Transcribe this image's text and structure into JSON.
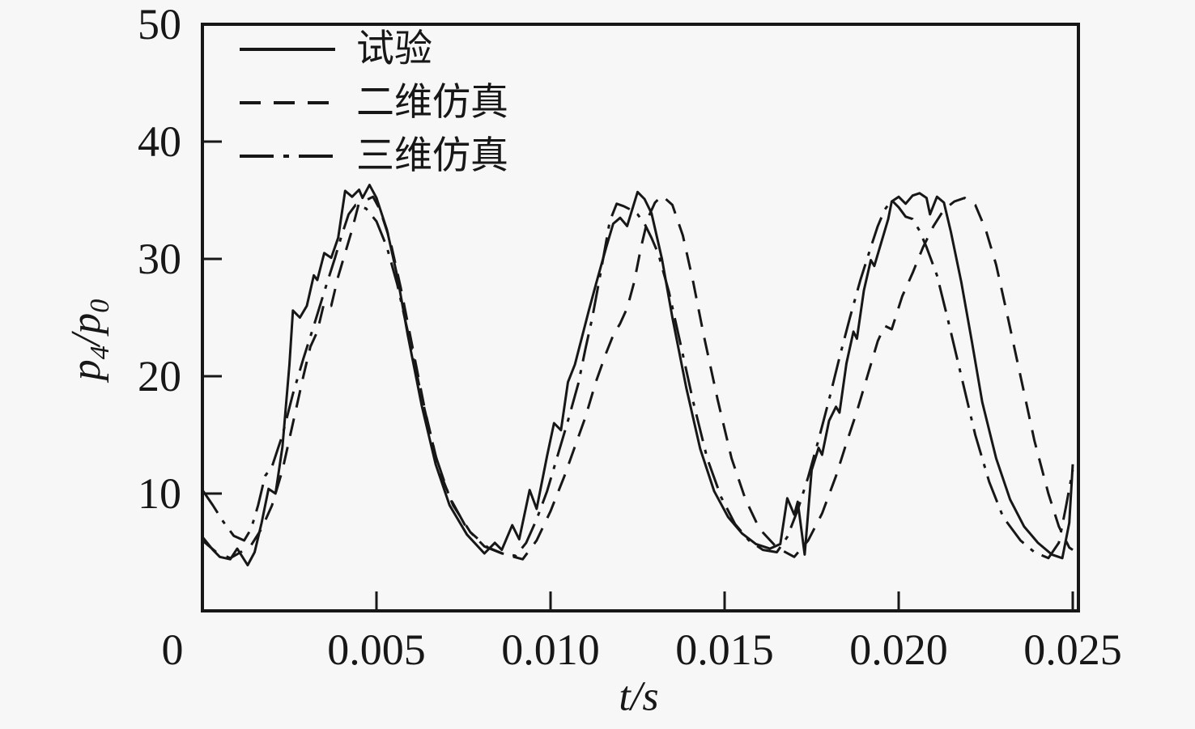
{
  "figure": {
    "background": "#f7f7f7",
    "ink": "#171717"
  },
  "axes": {
    "x_title_t": "t",
    "x_title_rest": "/s",
    "y_title_p1": "p",
    "y_title_sub1": "4",
    "y_title_slash": "/",
    "y_title_p2": "p",
    "y_title_sub2": "0"
  },
  "chart_data": {
    "type": "line",
    "title": "",
    "xlabel": "t/s",
    "ylabel": "p4/p0",
    "x_range": [
      0,
      0.025
    ],
    "y_range": [
      0,
      50
    ],
    "grid": false,
    "legend_position": "top-left-inside",
    "x_ticks": [
      {
        "value": 0,
        "label": "0",
        "mark": false
      },
      {
        "value": 0.005,
        "label": "0.005",
        "mark": true
      },
      {
        "value": 0.01,
        "label": "0.010",
        "mark": true
      },
      {
        "value": 0.015,
        "label": "0.015",
        "mark": true
      },
      {
        "value": 0.02,
        "label": "0.020",
        "mark": true
      },
      {
        "value": 0.025,
        "label": "0.025",
        "mark": true
      }
    ],
    "y_ticks": [
      {
        "value": 10,
        "label": "10",
        "mark": true
      },
      {
        "value": 20,
        "label": "20",
        "mark": true
      },
      {
        "value": 30,
        "label": "30",
        "mark": true
      },
      {
        "value": 40,
        "label": "40",
        "mark": true
      },
      {
        "value": 50,
        "label": "50",
        "mark": false
      }
    ],
    "series": [
      {
        "name": "试验",
        "style": "solid",
        "points": [
          [
            0,
            6.3
          ],
          [
            0.0003,
            5.2
          ],
          [
            0.0005,
            4.6
          ],
          [
            0.0008,
            4.4
          ],
          [
            0.001,
            5.3
          ],
          [
            0.0013,
            3.9
          ],
          [
            0.0015,
            5
          ],
          [
            0.0017,
            7.5
          ],
          [
            0.0019,
            10.4
          ],
          [
            0.0021,
            10
          ],
          [
            0.0023,
            14
          ],
          [
            0.0025,
            21
          ],
          [
            0.0026,
            25.6
          ],
          [
            0.0028,
            25
          ],
          [
            0.003,
            26
          ],
          [
            0.0032,
            28.6
          ],
          [
            0.0033,
            28.2
          ],
          [
            0.0035,
            30.5
          ],
          [
            0.0037,
            30.1
          ],
          [
            0.0039,
            31.8
          ],
          [
            0.0041,
            35.8
          ],
          [
            0.0043,
            35.3
          ],
          [
            0.0045,
            35.9
          ],
          [
            0.0046,
            35.2
          ],
          [
            0.0048,
            36.3
          ],
          [
            0.005,
            35.2
          ],
          [
            0.0053,
            32.5
          ],
          [
            0.0056,
            28.5
          ],
          [
            0.0059,
            23.5
          ],
          [
            0.0063,
            17.5
          ],
          [
            0.0067,
            12.5
          ],
          [
            0.0071,
            9
          ],
          [
            0.0076,
            6.5
          ],
          [
            0.0081,
            4.9
          ],
          [
            0.0084,
            5.8
          ],
          [
            0.0086,
            5.2
          ],
          [
            0.0089,
            7.3
          ],
          [
            0.0091,
            6.1
          ],
          [
            0.0094,
            10.3
          ],
          [
            0.0096,
            8.7
          ],
          [
            0.0099,
            13.2
          ],
          [
            0.0101,
            16
          ],
          [
            0.0103,
            15.4
          ],
          [
            0.0105,
            19.5
          ],
          [
            0.0107,
            21
          ],
          [
            0.0109,
            23.3
          ],
          [
            0.0111,
            25.6
          ],
          [
            0.0113,
            27.8
          ],
          [
            0.0116,
            31
          ],
          [
            0.0118,
            33
          ],
          [
            0.012,
            33.5
          ],
          [
            0.0122,
            32.8
          ],
          [
            0.0125,
            35.7
          ],
          [
            0.0127,
            35.1
          ],
          [
            0.0129,
            33.9
          ],
          [
            0.0132,
            30
          ],
          [
            0.0135,
            25
          ],
          [
            0.0139,
            19
          ],
          [
            0.0143,
            13.8
          ],
          [
            0.0147,
            10.2
          ],
          [
            0.0151,
            8
          ],
          [
            0.0155,
            6.6
          ],
          [
            0.0159,
            5.7
          ],
          [
            0.0163,
            5.3
          ],
          [
            0.0166,
            5.7
          ],
          [
            0.0168,
            9.6
          ],
          [
            0.017,
            8.2
          ],
          [
            0.0171,
            9.3
          ],
          [
            0.0173,
            4.8
          ],
          [
            0.0175,
            12
          ],
          [
            0.0177,
            13.9
          ],
          [
            0.0178,
            13.3
          ],
          [
            0.018,
            16.2
          ],
          [
            0.0182,
            17.4
          ],
          [
            0.0183,
            16.9
          ],
          [
            0.0185,
            21.1
          ],
          [
            0.0187,
            23.8
          ],
          [
            0.0188,
            23.2
          ],
          [
            0.019,
            27.3
          ],
          [
            0.0192,
            29.9
          ],
          [
            0.0193,
            29.4
          ],
          [
            0.0195,
            31.4
          ],
          [
            0.0197,
            33.4
          ],
          [
            0.0198,
            34.9
          ],
          [
            0.02,
            35.3
          ],
          [
            0.0202,
            34.7
          ],
          [
            0.0204,
            35.4
          ],
          [
            0.0206,
            35.6
          ],
          [
            0.0208,
            35.2
          ],
          [
            0.0209,
            33.8
          ],
          [
            0.0211,
            35.3
          ],
          [
            0.0213,
            34.8
          ],
          [
            0.0215,
            32.3
          ],
          [
            0.0218,
            28
          ],
          [
            0.0221,
            23
          ],
          [
            0.0224,
            17.8
          ],
          [
            0.0228,
            13
          ],
          [
            0.0232,
            9.5
          ],
          [
            0.0236,
            7.2
          ],
          [
            0.024,
            5.8
          ],
          [
            0.0244,
            4.8
          ],
          [
            0.0247,
            4.5
          ],
          [
            0.0249,
            7.5
          ],
          [
            0.025,
            12.5
          ]
        ]
      },
      {
        "name": "二维仿真",
        "style": "dashed",
        "points": [
          [
            0,
            6
          ],
          [
            0.0004,
            5
          ],
          [
            0.0008,
            4.5
          ],
          [
            0.0011,
            5
          ],
          [
            0.0014,
            5.6
          ],
          [
            0.0017,
            7
          ],
          [
            0.002,
            9
          ],
          [
            0.0023,
            12
          ],
          [
            0.0026,
            16
          ],
          [
            0.0029,
            20
          ],
          [
            0.0031,
            22.5
          ],
          [
            0.0033,
            23.8
          ],
          [
            0.0035,
            26.3
          ],
          [
            0.0037,
            26
          ],
          [
            0.0039,
            28.5
          ],
          [
            0.0041,
            30.5
          ],
          [
            0.0043,
            32.5
          ],
          [
            0.0045,
            34.8
          ],
          [
            0.0047,
            35
          ],
          [
            0.0049,
            35.3
          ],
          [
            0.0051,
            34.2
          ],
          [
            0.0054,
            31.5
          ],
          [
            0.0057,
            27.5
          ],
          [
            0.006,
            23
          ],
          [
            0.0064,
            17
          ],
          [
            0.0068,
            12
          ],
          [
            0.0072,
            9
          ],
          [
            0.0077,
            6.7
          ],
          [
            0.0082,
            5.4
          ],
          [
            0.0087,
            4.8
          ],
          [
            0.0092,
            4.4
          ],
          [
            0.0096,
            6
          ],
          [
            0.01,
            8.5
          ],
          [
            0.0104,
            11.5
          ],
          [
            0.0107,
            14
          ],
          [
            0.011,
            16.5
          ],
          [
            0.0113,
            19.5
          ],
          [
            0.0116,
            22
          ],
          [
            0.0118,
            23.5
          ],
          [
            0.012,
            24.5
          ],
          [
            0.0122,
            25.8
          ],
          [
            0.0124,
            28
          ],
          [
            0.0126,
            31
          ],
          [
            0.0128,
            33.5
          ],
          [
            0.013,
            34.8
          ],
          [
            0.0132,
            35.4
          ],
          [
            0.0135,
            34.6
          ],
          [
            0.0138,
            32
          ],
          [
            0.0141,
            28
          ],
          [
            0.0144,
            23.5
          ],
          [
            0.0148,
            18
          ],
          [
            0.0152,
            13
          ],
          [
            0.0156,
            9.5
          ],
          [
            0.016,
            7
          ],
          [
            0.0165,
            5.4
          ],
          [
            0.017,
            4.6
          ],
          [
            0.0174,
            6
          ],
          [
            0.0178,
            8.3
          ],
          [
            0.0182,
            11.5
          ],
          [
            0.0185,
            14.3
          ],
          [
            0.0188,
            17
          ],
          [
            0.0191,
            20
          ],
          [
            0.0194,
            23
          ],
          [
            0.0196,
            24.3
          ],
          [
            0.0198,
            24
          ],
          [
            0.0201,
            26.8
          ],
          [
            0.0204,
            28.8
          ],
          [
            0.0207,
            31
          ],
          [
            0.021,
            32.8
          ],
          [
            0.0213,
            34.2
          ],
          [
            0.0216,
            34.9
          ],
          [
            0.0219,
            35.2
          ],
          [
            0.0222,
            34.6
          ],
          [
            0.0225,
            32.5
          ],
          [
            0.0228,
            29.5
          ],
          [
            0.0231,
            25.5
          ],
          [
            0.0235,
            20
          ],
          [
            0.0239,
            14.5
          ],
          [
            0.0243,
            10
          ],
          [
            0.0246,
            7.2
          ],
          [
            0.0249,
            5.4
          ],
          [
            0.025,
            5.2
          ]
        ]
      },
      {
        "name": "三维仿真",
        "style": "dashdot",
        "points": [
          [
            0,
            10.3
          ],
          [
            0.0003,
            9
          ],
          [
            0.0006,
            7.6
          ],
          [
            0.0009,
            6.4
          ],
          [
            0.0012,
            6
          ],
          [
            0.0014,
            7
          ],
          [
            0.0016,
            9
          ],
          [
            0.0018,
            11.5
          ],
          [
            0.002,
            12.3
          ],
          [
            0.0023,
            15
          ],
          [
            0.0026,
            18.5
          ],
          [
            0.0029,
            21.5
          ],
          [
            0.0032,
            24.3
          ],
          [
            0.0035,
            27.2
          ],
          [
            0.0038,
            30
          ],
          [
            0.004,
            32
          ],
          [
            0.0042,
            33.8
          ],
          [
            0.0044,
            34.6
          ],
          [
            0.0047,
            34.3
          ],
          [
            0.005,
            33.2
          ],
          [
            0.0053,
            31
          ],
          [
            0.0056,
            27.8
          ],
          [
            0.0059,
            23.8
          ],
          [
            0.0063,
            18.2
          ],
          [
            0.0067,
            13.2
          ],
          [
            0.0071,
            9.7
          ],
          [
            0.0076,
            7
          ],
          [
            0.0081,
            5.5
          ],
          [
            0.0086,
            4.9
          ],
          [
            0.009,
            4.7
          ],
          [
            0.0093,
            5.8
          ],
          [
            0.0096,
            7.8
          ],
          [
            0.0099,
            10.2
          ],
          [
            0.0102,
            13.2
          ],
          [
            0.0105,
            16.2
          ],
          [
            0.0108,
            19.4
          ],
          [
            0.011,
            22.3
          ],
          [
            0.0112,
            25
          ],
          [
            0.0114,
            28.2
          ],
          [
            0.0116,
            31.5
          ],
          [
            0.0117,
            33.2
          ],
          [
            0.0119,
            34.7
          ],
          [
            0.0121,
            34.5
          ],
          [
            0.0123,
            34.2
          ],
          [
            0.0125,
            33.8
          ],
          [
            0.0127,
            33
          ],
          [
            0.0129,
            31.8
          ],
          [
            0.0131,
            30.4
          ],
          [
            0.0134,
            27.2
          ],
          [
            0.0137,
            23.2
          ],
          [
            0.0141,
            17.8
          ],
          [
            0.0145,
            13
          ],
          [
            0.0149,
            9.7
          ],
          [
            0.0153,
            7.4
          ],
          [
            0.0157,
            6
          ],
          [
            0.0161,
            5.2
          ],
          [
            0.0165,
            5
          ],
          [
            0.0168,
            6.3
          ],
          [
            0.0171,
            8.6
          ],
          [
            0.0174,
            11.4
          ],
          [
            0.0177,
            14.6
          ],
          [
            0.018,
            18
          ],
          [
            0.0183,
            21.6
          ],
          [
            0.0186,
            25
          ],
          [
            0.0189,
            28.2
          ],
          [
            0.0192,
            31
          ],
          [
            0.0194,
            32.8
          ],
          [
            0.0196,
            34.2
          ],
          [
            0.0198,
            35
          ],
          [
            0.02,
            34.4
          ],
          [
            0.0202,
            33.6
          ],
          [
            0.0204,
            33.4
          ],
          [
            0.0206,
            32.4
          ],
          [
            0.0208,
            31
          ],
          [
            0.0211,
            28.6
          ],
          [
            0.0214,
            25
          ],
          [
            0.0218,
            20
          ],
          [
            0.0222,
            15
          ],
          [
            0.0226,
            11
          ],
          [
            0.023,
            8
          ],
          [
            0.0235,
            6
          ],
          [
            0.0239,
            5
          ],
          [
            0.0243,
            4.5
          ],
          [
            0.0246,
            5.8
          ],
          [
            0.0248,
            8.8
          ],
          [
            0.025,
            12
          ]
        ]
      }
    ]
  }
}
